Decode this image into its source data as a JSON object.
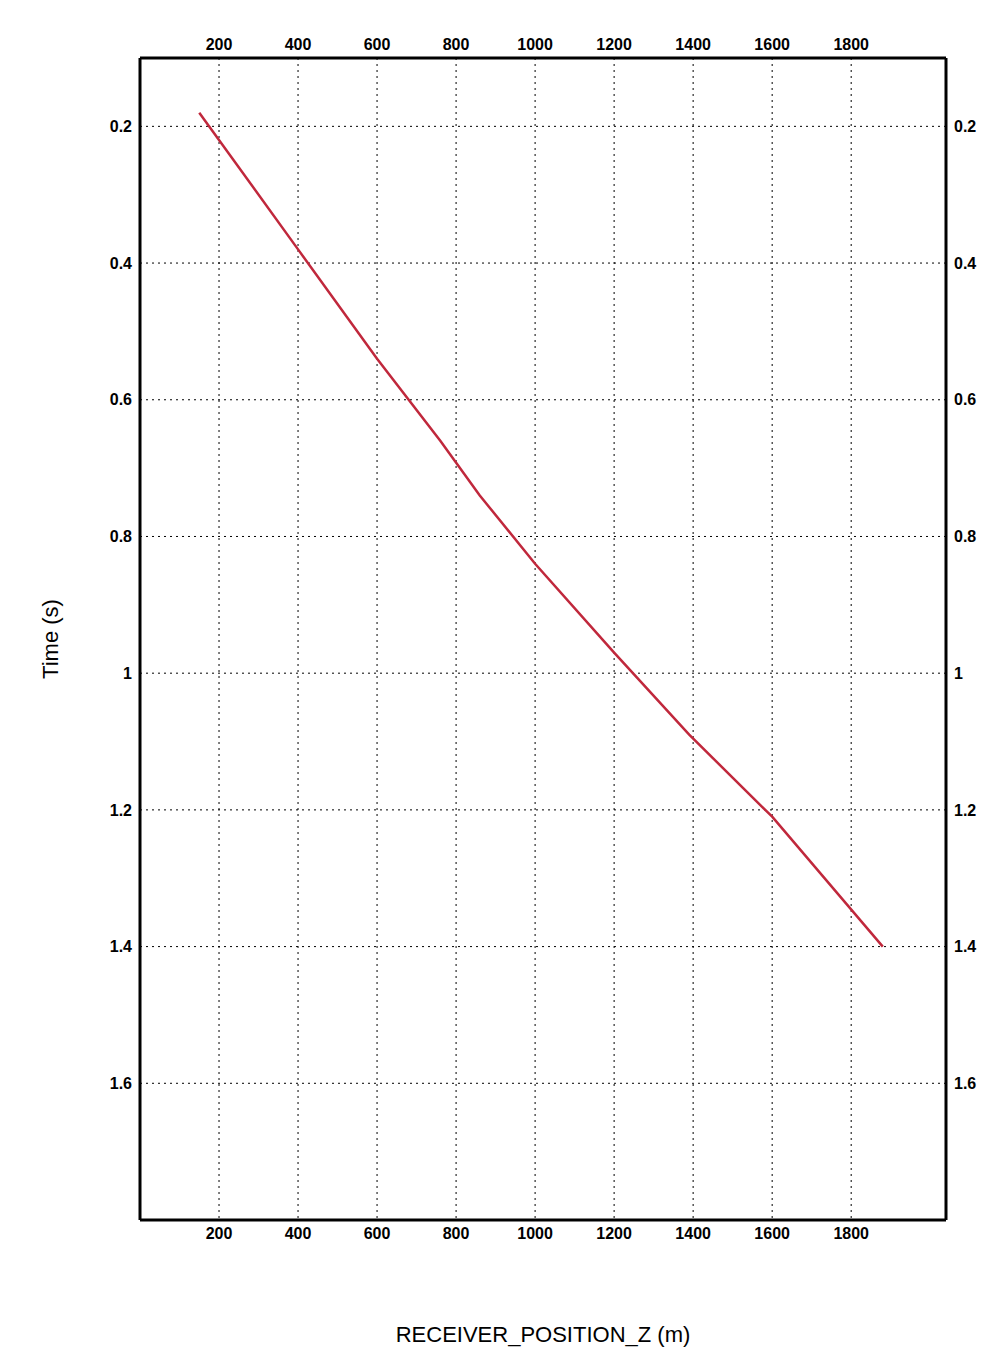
{
  "chart_data": {
    "type": "line",
    "x_label": "RECEIVER_POSITION_Z (m)",
    "y_label": "Time (s)",
    "x": [
      150,
      400,
      600,
      760,
      860,
      1000,
      1200,
      1390,
      1600,
      1880
    ],
    "values": [
      0.18,
      0.38,
      0.54,
      0.66,
      0.74,
      0.84,
      0.97,
      1.09,
      1.21,
      1.4
    ],
    "color": "#c0283c",
    "xlim": [
      0,
      2040
    ],
    "xticks": [
      200,
      400,
      600,
      800,
      1000,
      1200,
      1400,
      1600,
      1800
    ],
    "ylim": [
      0.1,
      1.8
    ],
    "yticks": [
      0.2,
      0.4,
      0.6,
      0.8,
      1,
      1.2,
      1.4,
      1.6
    ],
    "grid": true
  }
}
